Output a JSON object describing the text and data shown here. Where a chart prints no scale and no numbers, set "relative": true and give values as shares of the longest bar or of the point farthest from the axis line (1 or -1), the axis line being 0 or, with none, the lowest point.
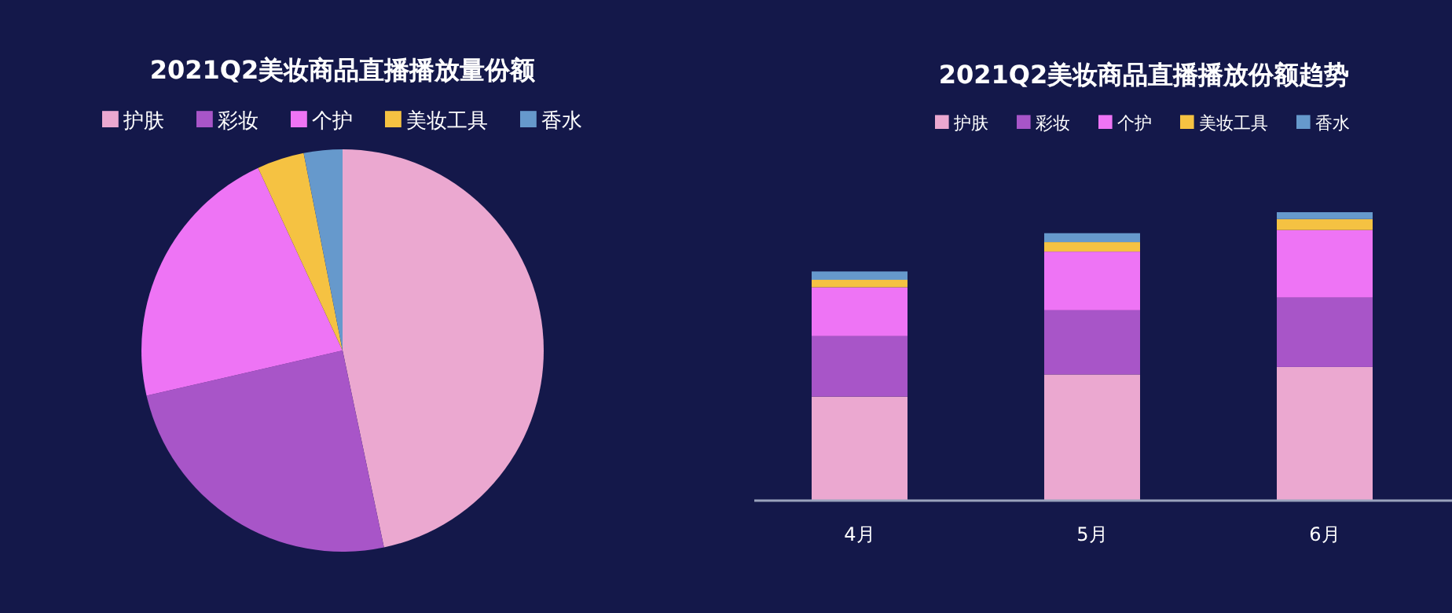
{
  "chart_data": [
    {
      "type": "pie",
      "title": "2021Q2美妆商品直播播放量份额",
      "legend": "top",
      "categories": [
        "护肤",
        "彩妆",
        "个护",
        "美妆工具",
        "香水"
      ],
      "values": [
        46.7,
        24.7,
        21.7,
        3.8,
        3.1
      ],
      "colors": [
        "#eba8d0",
        "#a855c8",
        "#ee74f5",
        "#f5c242",
        "#6699cc"
      ]
    },
    {
      "type": "bar",
      "title": "2021Q2美妆商品直播播放份额趋势",
      "legend": "top",
      "stacked": true,
      "relative": true,
      "categories": [
        "4月",
        "5月",
        "6月"
      ],
      "series": [
        {
          "name": "护肤",
          "color": "#eba8d0",
          "values": [
            0.359,
            0.436,
            0.462
          ]
        },
        {
          "name": "彩妆",
          "color": "#a855c8",
          "values": [
            0.21,
            0.223,
            0.241
          ]
        },
        {
          "name": "个护",
          "color": "#ee74f5",
          "values": [
            0.17,
            0.204,
            0.235
          ]
        },
        {
          "name": "美妆工具",
          "color": "#f5c242",
          "values": [
            0.026,
            0.033,
            0.038
          ]
        },
        {
          "name": "香水",
          "color": "#6699cc",
          "values": [
            0.029,
            0.031,
            0.024
          ]
        }
      ]
    }
  ]
}
